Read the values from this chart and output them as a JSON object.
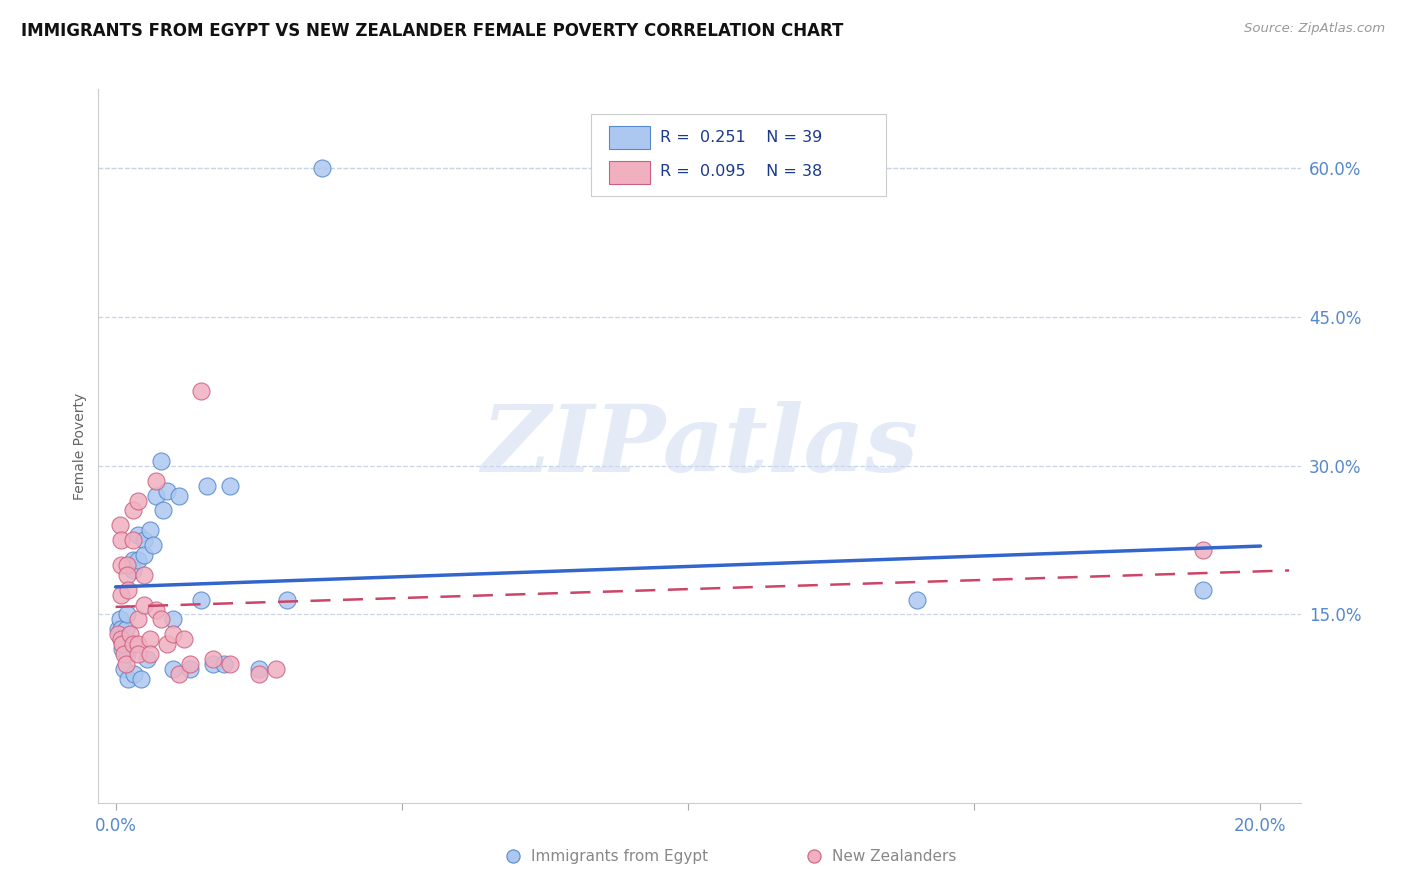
{
  "title": "IMMIGRANTS FROM EGYPT VS NEW ZEALANDER FEMALE POVERTY CORRELATION CHART",
  "source": "Source: ZipAtlas.com",
  "ylabel_label": "Female Poverty",
  "xlim": [
    -0.003,
    0.207
  ],
  "ylim": [
    -0.04,
    0.68
  ],
  "x_ticks": [
    0.0,
    0.05,
    0.1,
    0.15,
    0.2
  ],
  "x_tick_labels": [
    "0.0%",
    "",
    "",
    "",
    "20.0%"
  ],
  "y_tick_vals": [
    0.15,
    0.3,
    0.45,
    0.6
  ],
  "y_tick_labels": [
    "15.0%",
    "30.0%",
    "45.0%",
    "60.0%"
  ],
  "legend_R_egypt": "R =  0.251",
  "legend_N_egypt": "N = 39",
  "legend_R_nz": "R =  0.095",
  "legend_N_nz": "N = 38",
  "legend_label_egypt": "Immigrants from Egypt",
  "legend_label_nz": "New Zealanders",
  "scatter_color_egypt": "#adc8f0",
  "edge_color_egypt": "#5588cc",
  "scatter_color_nz": "#f0b0c0",
  "edge_color_nz": "#cc6080",
  "line_color_egypt": "#3366cc",
  "line_color_nz": "#cc4466",
  "watermark": "ZIPatlas",
  "egypt_x": [
    0.0005,
    0.0008,
    0.001,
    0.001,
    0.0012,
    0.0015,
    0.0018,
    0.002,
    0.002,
    0.0022,
    0.003,
    0.003,
    0.0032,
    0.004,
    0.004,
    0.0045,
    0.005,
    0.005,
    0.0055,
    0.006,
    0.0065,
    0.007,
    0.008,
    0.0082,
    0.009,
    0.01,
    0.01,
    0.011,
    0.013,
    0.015,
    0.016,
    0.017,
    0.019,
    0.02,
    0.025,
    0.03,
    0.036,
    0.14,
    0.19
  ],
  "egypt_y": [
    0.135,
    0.145,
    0.125,
    0.135,
    0.115,
    0.095,
    0.135,
    0.15,
    0.11,
    0.085,
    0.205,
    0.195,
    0.09,
    0.23,
    0.205,
    0.085,
    0.225,
    0.21,
    0.105,
    0.235,
    0.22,
    0.27,
    0.305,
    0.255,
    0.275,
    0.145,
    0.095,
    0.27,
    0.095,
    0.165,
    0.28,
    0.1,
    0.1,
    0.28,
    0.095,
    0.165,
    0.6,
    0.165,
    0.175
  ],
  "nz_x": [
    0.0005,
    0.0008,
    0.001,
    0.001,
    0.001,
    0.001,
    0.0012,
    0.0015,
    0.0018,
    0.002,
    0.002,
    0.0022,
    0.0025,
    0.003,
    0.003,
    0.003,
    0.004,
    0.004,
    0.004,
    0.004,
    0.005,
    0.005,
    0.006,
    0.006,
    0.007,
    0.007,
    0.008,
    0.009,
    0.01,
    0.011,
    0.012,
    0.013,
    0.015,
    0.017,
    0.02,
    0.025,
    0.028,
    0.19
  ],
  "nz_y": [
    0.13,
    0.24,
    0.225,
    0.2,
    0.17,
    0.125,
    0.12,
    0.11,
    0.1,
    0.2,
    0.19,
    0.175,
    0.13,
    0.255,
    0.225,
    0.12,
    0.265,
    0.145,
    0.12,
    0.11,
    0.19,
    0.16,
    0.125,
    0.11,
    0.285,
    0.155,
    0.145,
    0.12,
    0.13,
    0.09,
    0.125,
    0.1,
    0.375,
    0.105,
    0.1,
    0.09,
    0.095,
    0.215
  ]
}
